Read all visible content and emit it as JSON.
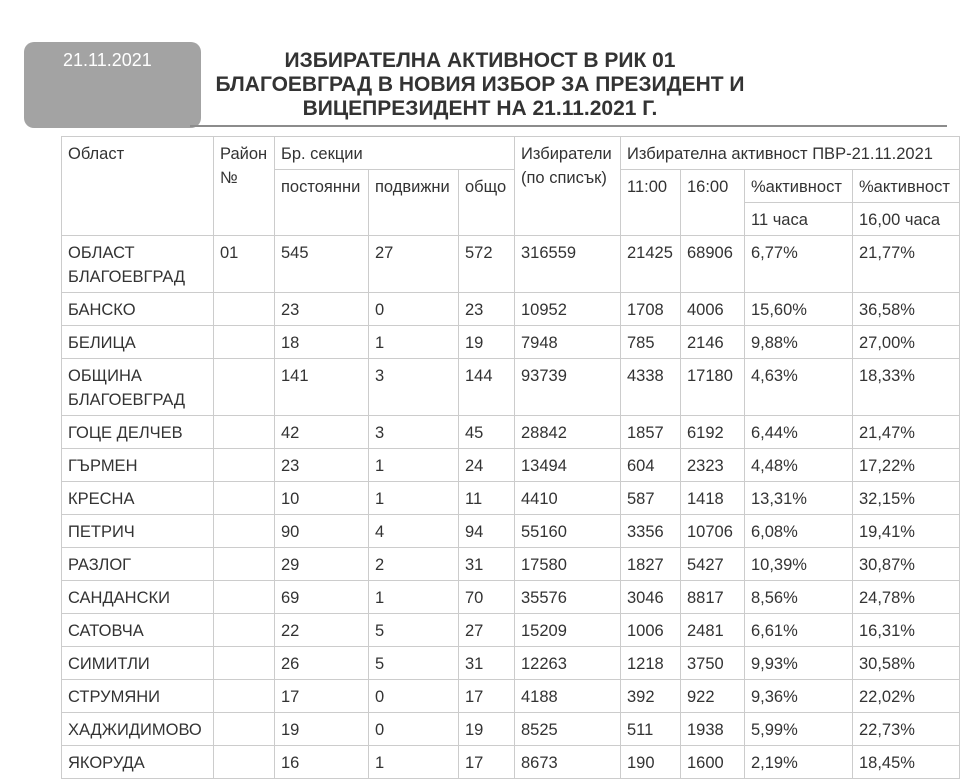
{
  "date_badge": "21.11.2021",
  "title": {
    "line1": "ИЗБИРАТЕЛНА АКТИВНОСТ В РИК 01",
    "line2": "БЛАГОЕВГРАД В НОВИЯ ИЗБОР ЗА ПРЕЗИДЕНТ И",
    "line3": "ВИЦЕПРЕЗИДЕНТ НА 21.11.2021 Г."
  },
  "table": {
    "headers": {
      "oblast": "Област",
      "rayon": "Район №",
      "sections": "Бр. секции",
      "permanent": "постоянни",
      "mobile": "подвижни",
      "total": "общо",
      "voters": "Избиратели (по списък)",
      "activity": "Избирателна активност ПВР-21.11.2021",
      "t1100": "11:00",
      "t1600": "16:00",
      "pct_activity_1": "%активност",
      "pct_activity_2": "%активност",
      "hour_11": "11 часа",
      "hour_16": "16,00 часа"
    },
    "rows": [
      [
        "ОБЛАСТ БЛАГОЕВГРАД",
        "01",
        "545",
        "27",
        "572",
        "316559",
        "21425",
        "68906",
        "6,77%",
        "21,77%"
      ],
      [
        "БАНСКО",
        "",
        "23",
        "0",
        "23",
        "10952",
        "1708",
        "4006",
        "15,60%",
        "36,58%"
      ],
      [
        "БЕЛИЦА",
        "",
        "18",
        "1",
        "19",
        "7948",
        "785",
        "2146",
        "9,88%",
        "27,00%"
      ],
      [
        "ОБЩИНА БЛАГОЕВГРАД",
        "",
        "141",
        "3",
        "144",
        "93739",
        "4338",
        "17180",
        "4,63%",
        "18,33%"
      ],
      [
        "ГОЦЕ ДЕЛЧЕВ",
        "",
        "42",
        "3",
        "45",
        "28842",
        "1857",
        "6192",
        "6,44%",
        "21,47%"
      ],
      [
        "ГЪРМЕН",
        "",
        "23",
        "1",
        "24",
        "13494",
        "604",
        "2323",
        "4,48%",
        "17,22%"
      ],
      [
        "КРЕСНА",
        "",
        "10",
        "1",
        "11",
        "4410",
        "587",
        "1418",
        "13,31%",
        "32,15%"
      ],
      [
        "ПЕТРИЧ",
        "",
        "90",
        "4",
        "94",
        "55160",
        "3356",
        "10706",
        "6,08%",
        "19,41%"
      ],
      [
        "РАЗЛОГ",
        "",
        "29",
        "2",
        "31",
        "17580",
        "1827",
        "5427",
        "10,39%",
        "30,87%"
      ],
      [
        "САНДАНСКИ",
        "",
        "69",
        "1",
        "70",
        "35576",
        "3046",
        "8817",
        "8,56%",
        "24,78%"
      ],
      [
        "САТОВЧА",
        "",
        "22",
        "5",
        "27",
        "15209",
        "1006",
        "2481",
        "6,61%",
        "16,31%"
      ],
      [
        "СИМИТЛИ",
        "",
        "26",
        "5",
        "31",
        "12263",
        "1218",
        "3750",
        "9,93%",
        "30,58%"
      ],
      [
        "СТРУМЯНИ",
        "",
        "17",
        "0",
        "17",
        "4188",
        "392",
        "922",
        "9,36%",
        "22,02%"
      ],
      [
        "ХАДЖИДИМОВО",
        "",
        "19",
        "0",
        "19",
        "8525",
        "511",
        "1938",
        "5,99%",
        "22,73%"
      ],
      [
        "ЯКОРУДА",
        "",
        "16",
        "1",
        "17",
        "8673",
        "190",
        "1600",
        "2,19%",
        "18,45%"
      ]
    ]
  }
}
